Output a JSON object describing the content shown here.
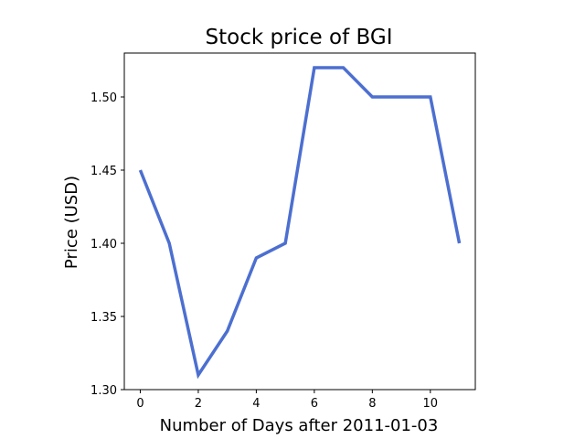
{
  "chart_data": {
    "type": "line",
    "title": "Stock price of BGI",
    "xlabel": "Number of Days after 2011-01-03",
    "ylabel": "Price (USD)",
    "xlim": [
      -0.55,
      11.55
    ],
    "ylim": [
      1.3,
      1.53
    ],
    "xticks": [
      0,
      2,
      4,
      6,
      8,
      10
    ],
    "xtick_labels": [
      "0",
      "2",
      "4",
      "6",
      "8",
      "10"
    ],
    "yticks": [
      1.3,
      1.35,
      1.4,
      1.45,
      1.5
    ],
    "ytick_labels": [
      "1.30",
      "1.35",
      "1.40",
      "1.45",
      "1.50"
    ],
    "grid": false,
    "legend": false,
    "series": [
      {
        "x": [
          0,
          1,
          2,
          3,
          4,
          5,
          6,
          7,
          8,
          9,
          10,
          11
        ],
        "values": [
          1.45,
          1.4,
          1.31,
          1.34,
          1.39,
          1.4,
          1.52,
          1.52,
          1.5,
          1.5,
          1.5,
          1.4
        ],
        "color": "#4c6fd0"
      }
    ]
  }
}
